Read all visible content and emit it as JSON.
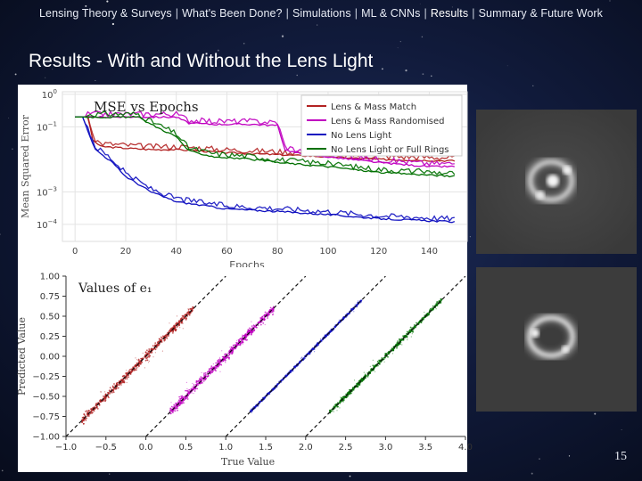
{
  "nav": {
    "items": [
      {
        "label": "Lensing Theory & Surveys",
        "active": false
      },
      {
        "label": "What's Been Done?",
        "active": false
      },
      {
        "label": "Simulations",
        "active": false
      },
      {
        "label": "ML & CNNs",
        "active": false
      },
      {
        "label": "Results",
        "active": true
      },
      {
        "label": "Summary & Future Work",
        "active": false
      }
    ],
    "separator": "|"
  },
  "slide": {
    "title": "Results - With and Without the Lens Light",
    "page_number": "15"
  },
  "colors": {
    "lens_mass_match": "#b22222",
    "lens_mass_randomised": "#c000c0",
    "no_lens_light": "#1010c0",
    "no_lens_light_full_rings": "#007000"
  },
  "images": [
    {
      "name": "lensed-ring-with-lens-light"
    },
    {
      "name": "lensed-ring-without-lens-light"
    }
  ],
  "chart_data": [
    {
      "type": "line",
      "title": "MSE vs Epochs",
      "xlabel": "Epochs",
      "ylabel": "Mean Squared Error",
      "yscale": "log",
      "xlim": [
        -5,
        155
      ],
      "ylim": [
        3e-05,
        1.2
      ],
      "xticks": [
        0,
        20,
        40,
        60,
        80,
        100,
        120,
        140
      ],
      "yticks": [
        {
          "value": 1,
          "label_base": "10",
          "label_exp": "0"
        },
        {
          "value": 0.1,
          "label_base": "10",
          "label_exp": "−1"
        },
        {
          "value": 0.001,
          "label_base": "10",
          "label_exp": "−3"
        },
        {
          "value": 0.0001,
          "label_base": "10",
          "label_exp": "−4"
        }
      ],
      "legend_position": "top-right",
      "series": [
        {
          "name": "Lens & Mass Match",
          "color": "#b22222",
          "points": [
            [
              0,
              0.2
            ],
            [
              5,
              0.2
            ],
            [
              7,
              0.04
            ],
            [
              10,
              0.025
            ],
            [
              20,
              0.022
            ],
            [
              30,
              0.02
            ],
            [
              40,
              0.02
            ],
            [
              50,
              0.018
            ],
            [
              60,
              0.016
            ],
            [
              80,
              0.014
            ],
            [
              100,
              0.012
            ],
            [
              120,
              0.01
            ],
            [
              150,
              0.009
            ]
          ]
        },
        {
          "name": "Lens & Mass Randomised",
          "color": "#c000c0",
          "points": [
            [
              0,
              0.2
            ],
            [
              40,
              0.2
            ],
            [
              45,
              0.13
            ],
            [
              55,
              0.12
            ],
            [
              70,
              0.12
            ],
            [
              80,
              0.11
            ],
            [
              83,
              0.02
            ],
            [
              90,
              0.014
            ],
            [
              100,
              0.012
            ],
            [
              120,
              0.008
            ],
            [
              140,
              0.006
            ],
            [
              150,
              0.006
            ]
          ]
        },
        {
          "name": "No Lens Light",
          "color": "#1010c0",
          "points": [
            [
              0,
              0.2
            ],
            [
              3,
              0.2
            ],
            [
              8,
              0.02
            ],
            [
              14,
              0.009
            ],
            [
              20,
              0.003
            ],
            [
              30,
              0.001
            ],
            [
              40,
              0.0005
            ],
            [
              60,
              0.0003
            ],
            [
              80,
              0.00025
            ],
            [
              100,
              0.0002
            ],
            [
              120,
              0.00015
            ],
            [
              150,
              0.00012
            ]
          ]
        },
        {
          "name": "No Lens Light or Full Rings",
          "color": "#007000",
          "points": [
            [
              0,
              0.2
            ],
            [
              25,
              0.2
            ],
            [
              30,
              0.12
            ],
            [
              40,
              0.05
            ],
            [
              45,
              0.018
            ],
            [
              55,
              0.012
            ],
            [
              70,
              0.01
            ],
            [
              80,
              0.008
            ],
            [
              100,
              0.006
            ],
            [
              120,
              0.004
            ],
            [
              150,
              0.003
            ]
          ]
        }
      ]
    },
    {
      "type": "scatter",
      "title": "Values of e₁",
      "xlabel": "True Value",
      "ylabel": "Predicted Value",
      "xlim": [
        -1.0,
        4.0
      ],
      "ylim": [
        -1.0,
        1.0
      ],
      "xticks": [
        "−1.0",
        "−0.5",
        "0.0",
        "0.5",
        "1.0",
        "1.5",
        "2.0",
        "2.5",
        "3.0",
        "3.5",
        "4.0"
      ],
      "yticks": [
        "−1.00",
        "−0.75",
        "−0.50",
        "−0.25",
        "0.00",
        "0.25",
        "0.50",
        "0.75",
        "1.00"
      ],
      "series": [
        {
          "name": "Lens & Mass Match",
          "color": "#b22222",
          "offset": 0.0,
          "x_range": [
            -0.8,
            0.6
          ],
          "spread": 0.045
        },
        {
          "name": "Lens & Mass Randomised",
          "color": "#c000c0",
          "offset": 1.0,
          "x_range": [
            0.3,
            1.6
          ],
          "spread": 0.05
        },
        {
          "name": "No Lens Light",
          "color": "#1010c0",
          "offset": 2.0,
          "x_range": [
            1.3,
            2.7
          ],
          "spread": 0.015
        },
        {
          "name": "No Lens Light or Full Rings",
          "color": "#007000",
          "offset": 3.0,
          "x_range": [
            2.3,
            3.7
          ],
          "spread": 0.03
        }
      ],
      "reference_lines": [
        0.0,
        1.0,
        2.0,
        3.0
      ]
    }
  ]
}
